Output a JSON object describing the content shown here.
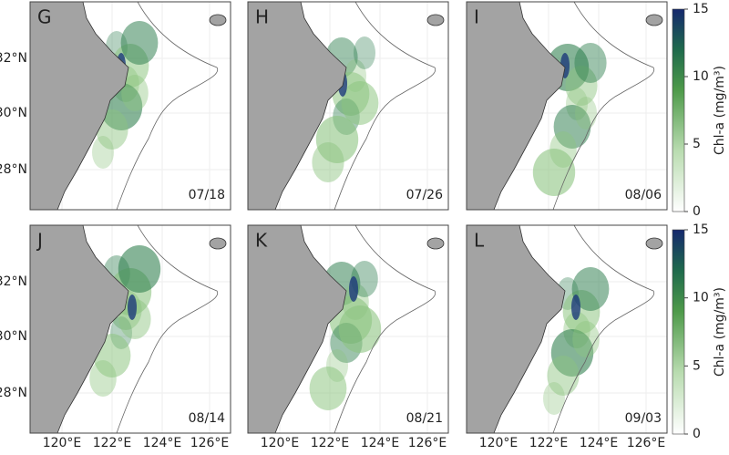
{
  "panels": [
    {
      "letter": "G",
      "date": "07/18"
    },
    {
      "letter": "H",
      "date": "07/26"
    },
    {
      "letter": "I",
      "date": "08/06"
    },
    {
      "letter": "J",
      "date": "08/14"
    },
    {
      "letter": "K",
      "date": "08/21"
    },
    {
      "letter": "L",
      "date": "09/03"
    }
  ],
  "lat_labels": [
    "32°N",
    "30°N",
    "28°N"
  ],
  "lon_labels": [
    "120°E",
    "122°E",
    "124°E",
    "126°E"
  ],
  "colorbar": {
    "label": "Chl-a (mg/m³)",
    "lim": [
      0,
      15
    ],
    "ticks": [
      0,
      5,
      10,
      15
    ]
  }
}
